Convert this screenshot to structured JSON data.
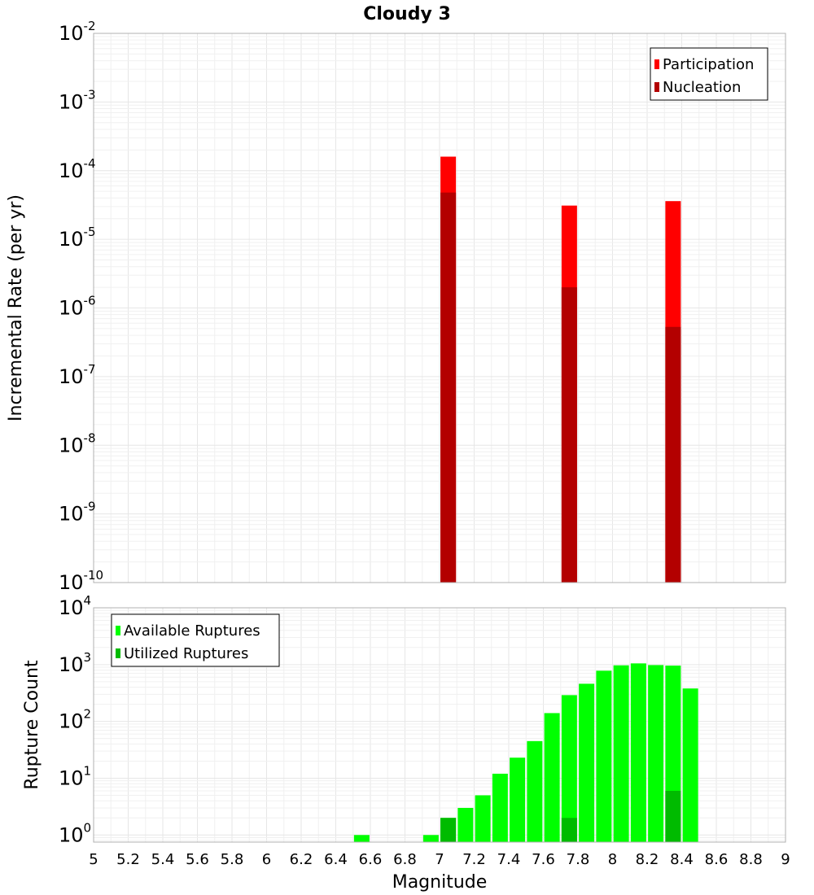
{
  "chart_data": [
    {
      "type": "bar",
      "title": "Cloudy 3",
      "xlabel": "",
      "ylabel": "Incremental Rate (per yr)",
      "yscale": "log",
      "ylim": [
        1e-10,
        0.01
      ],
      "xlim": [
        5,
        9
      ],
      "grid": true,
      "legend_position": "top-right",
      "y_tick_exponents": [
        "-10",
        "-9",
        "-8",
        "-7",
        "-6",
        "-5",
        "-4",
        "-3",
        "-2"
      ],
      "y_tick_base": "10",
      "series": [
        {
          "name": "Participation",
          "color": "#ff0000",
          "x": [
            7.05,
            7.75,
            8.35
          ],
          "values": [
            0.00016,
            3.1e-05,
            3.6e-05
          ]
        },
        {
          "name": "Nucleation",
          "color": "#b30000",
          "x": [
            7.05,
            7.75,
            8.35
          ],
          "values": [
            4.8e-05,
            2e-06,
            5.3e-07
          ]
        }
      ]
    },
    {
      "type": "bar",
      "title": "",
      "xlabel": "Magnitude",
      "ylabel": "Rupture Count",
      "yscale": "log",
      "ylim": [
        0.75,
        10000
      ],
      "xlim": [
        5,
        9
      ],
      "grid": true,
      "legend_position": "top-left",
      "y_tick_exponents": [
        "0",
        "1",
        "2",
        "3",
        "4"
      ],
      "y_tick_base": "10",
      "x_ticks": [
        "5",
        "5.2",
        "5.4",
        "5.6",
        "5.8",
        "6",
        "6.2",
        "6.4",
        "6.6",
        "6.8",
        "7",
        "7.2",
        "7.4",
        "7.6",
        "7.8",
        "8",
        "8.2",
        "8.4",
        "8.6",
        "8.8",
        "9"
      ],
      "series": [
        {
          "name": "Available Ruptures",
          "color": "#00ff00",
          "x": [
            6.55,
            6.95,
            7.05,
            7.15,
            7.25,
            7.35,
            7.45,
            7.55,
            7.65,
            7.75,
            7.85,
            7.95,
            8.05,
            8.15,
            8.25,
            8.35,
            8.45
          ],
          "values": [
            1,
            1,
            2,
            3,
            5,
            12,
            23,
            45,
            140,
            290,
            460,
            780,
            970,
            1050,
            980,
            960,
            380
          ]
        },
        {
          "name": "Utilized Ruptures",
          "color": "#00bb00",
          "x": [
            7.05,
            7.75,
            8.35
          ],
          "values": [
            2,
            2,
            6
          ]
        }
      ]
    }
  ]
}
